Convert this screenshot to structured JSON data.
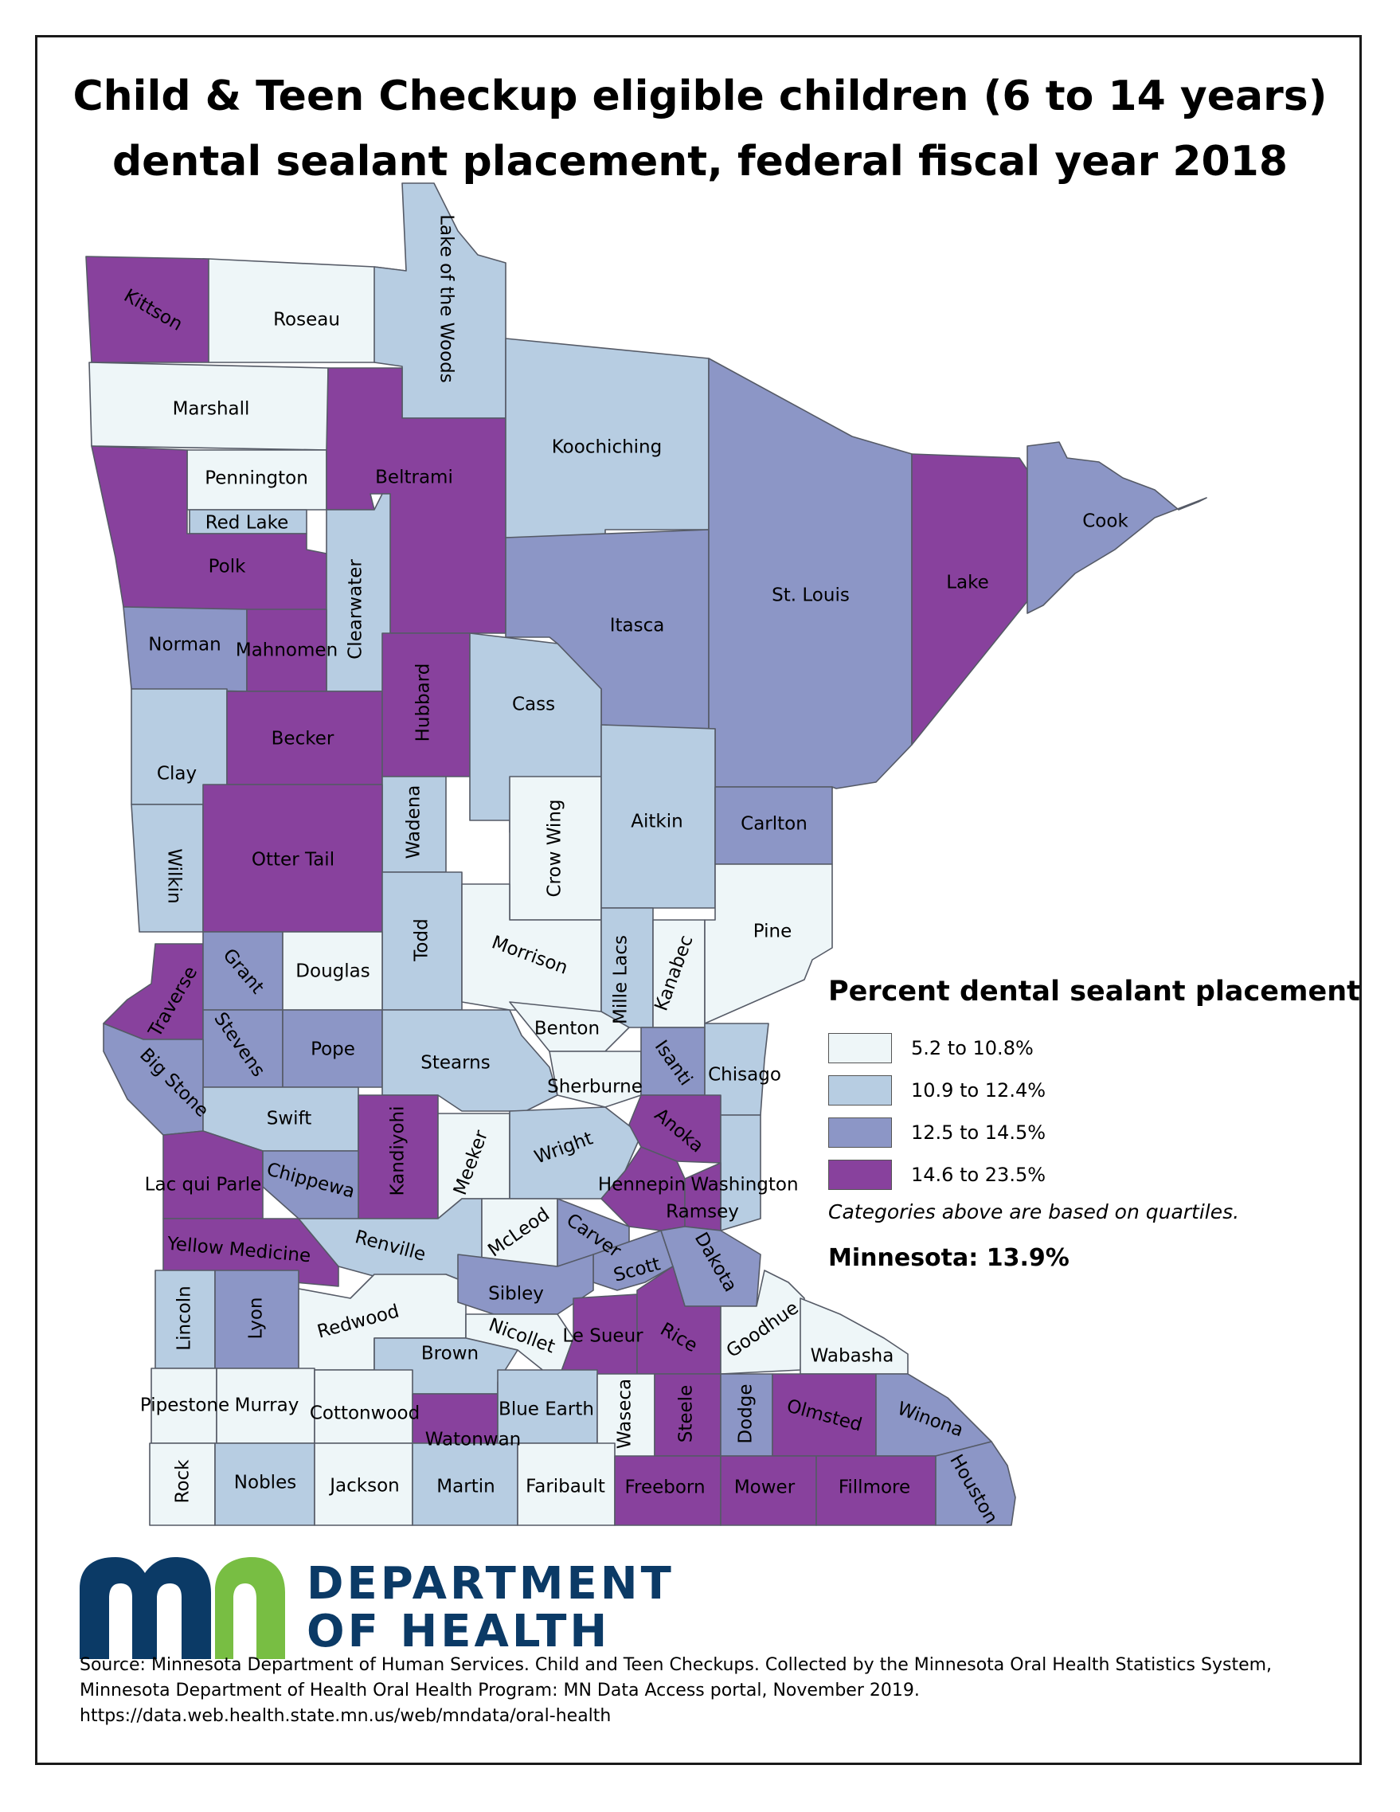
{
  "title_line1": "Child & Teen Checkup eligible children (6 to 14 years)",
  "title_line2": "dental sealant placement, federal fiscal year 2018",
  "legend": {
    "title": "Percent dental sealant placement",
    "items": [
      {
        "label": "5.2 to 10.8%",
        "color": "#eef6f8",
        "class": "c1"
      },
      {
        "label": "10.9 to 12.4%",
        "color": "#b7cde2",
        "class": "c2"
      },
      {
        "label": "12.5 to 14.5%",
        "color": "#8c96c6",
        "class": "c3"
      },
      {
        "label": "14.6 to 23.5%",
        "color": "#88419d",
        "class": "c4"
      }
    ],
    "note": "Categories above are based on quartiles.",
    "state_total": "Minnesota: 13.9%"
  },
  "counties": [
    {
      "name": "Kittson",
      "class": "c4"
    },
    {
      "name": "Roseau",
      "class": "c1"
    },
    {
      "name": "Lake of the Woods",
      "class": "c2"
    },
    {
      "name": "Marshall",
      "class": "c1"
    },
    {
      "name": "Pennington",
      "class": "c1"
    },
    {
      "name": "Red Lake",
      "class": "c2"
    },
    {
      "name": "Polk",
      "class": "c4"
    },
    {
      "name": "Beltrami",
      "class": "c4"
    },
    {
      "name": "Koochiching",
      "class": "c2"
    },
    {
      "name": "Clearwater",
      "class": "c2"
    },
    {
      "name": "Norman",
      "class": "c3"
    },
    {
      "name": "Mahnomen",
      "class": "c4"
    },
    {
      "name": "Itasca",
      "class": "c3"
    },
    {
      "name": "St. Louis",
      "class": "c3"
    },
    {
      "name": "Lake",
      "class": "c4"
    },
    {
      "name": "Cook",
      "class": "c3"
    },
    {
      "name": "Clay",
      "class": "c2"
    },
    {
      "name": "Becker",
      "class": "c4"
    },
    {
      "name": "Hubbard",
      "class": "c4"
    },
    {
      "name": "Cass",
      "class": "c2"
    },
    {
      "name": "Wadena",
      "class": "c2"
    },
    {
      "name": "Crow Wing",
      "class": "c1"
    },
    {
      "name": "Aitkin",
      "class": "c2"
    },
    {
      "name": "Carlton",
      "class": "c3"
    },
    {
      "name": "Wilkin",
      "class": "c2"
    },
    {
      "name": "Otter Tail",
      "class": "c4"
    },
    {
      "name": "Todd",
      "class": "c2"
    },
    {
      "name": "Morrison",
      "class": "c1"
    },
    {
      "name": "Mille Lacs",
      "class": "c2"
    },
    {
      "name": "Kanabec",
      "class": "c1"
    },
    {
      "name": "Pine",
      "class": "c1"
    },
    {
      "name": "Traverse",
      "class": "c4"
    },
    {
      "name": "Grant",
      "class": "c3"
    },
    {
      "name": "Douglas",
      "class": "c1"
    },
    {
      "name": "Stevens",
      "class": "c3"
    },
    {
      "name": "Pope",
      "class": "c3"
    },
    {
      "name": "Stearns",
      "class": "c2"
    },
    {
      "name": "Benton",
      "class": "c1"
    },
    {
      "name": "Sherburne",
      "class": "c1"
    },
    {
      "name": "Isanti",
      "class": "c3"
    },
    {
      "name": "Chisago",
      "class": "c2"
    },
    {
      "name": "Big Stone",
      "class": "c3"
    },
    {
      "name": "Swift",
      "class": "c2"
    },
    {
      "name": "Kandiyohi",
      "class": "c4"
    },
    {
      "name": "Meeker",
      "class": "c1"
    },
    {
      "name": "Wright",
      "class": "c2"
    },
    {
      "name": "Anoka",
      "class": "c4"
    },
    {
      "name": "Lac qui Parle",
      "class": "c4"
    },
    {
      "name": "Chippewa",
      "class": "c3"
    },
    {
      "name": "Hennepin",
      "class": "c4"
    },
    {
      "name": "Washington",
      "class": "c2"
    },
    {
      "name": "Ramsey",
      "class": "c4"
    },
    {
      "name": "Yellow Medicine",
      "class": "c4"
    },
    {
      "name": "Renville",
      "class": "c2"
    },
    {
      "name": "McLeod",
      "class": "c1"
    },
    {
      "name": "Carver",
      "class": "c3"
    },
    {
      "name": "Scott",
      "class": "c3"
    },
    {
      "name": "Dakota",
      "class": "c3"
    },
    {
      "name": "Lincoln",
      "class": "c2"
    },
    {
      "name": "Lyon",
      "class": "c3"
    },
    {
      "name": "Redwood",
      "class": "c1"
    },
    {
      "name": "Sibley",
      "class": "c3"
    },
    {
      "name": "Nicollet",
      "class": "c1"
    },
    {
      "name": "Le Sueur",
      "class": "c4"
    },
    {
      "name": "Rice",
      "class": "c4"
    },
    {
      "name": "Goodhue",
      "class": "c1"
    },
    {
      "name": "Wabasha",
      "class": "c1"
    },
    {
      "name": "Brown",
      "class": "c2"
    },
    {
      "name": "Pipestone",
      "class": "c1"
    },
    {
      "name": "Murray",
      "class": "c1"
    },
    {
      "name": "Cottonwood",
      "class": "c1"
    },
    {
      "name": "Watonwan",
      "class": "c4"
    },
    {
      "name": "Blue Earth",
      "class": "c2"
    },
    {
      "name": "Waseca",
      "class": "c1"
    },
    {
      "name": "Steele",
      "class": "c4"
    },
    {
      "name": "Dodge",
      "class": "c3"
    },
    {
      "name": "Olmsted",
      "class": "c4"
    },
    {
      "name": "Winona",
      "class": "c3"
    },
    {
      "name": "Rock",
      "class": "c1"
    },
    {
      "name": "Nobles",
      "class": "c2"
    },
    {
      "name": "Jackson",
      "class": "c1"
    },
    {
      "name": "Martin",
      "class": "c2"
    },
    {
      "name": "Faribault",
      "class": "c1"
    },
    {
      "name": "Freeborn",
      "class": "c4"
    },
    {
      "name": "Mower",
      "class": "c4"
    },
    {
      "name": "Fillmore",
      "class": "c4"
    },
    {
      "name": "Houston",
      "class": "c3"
    }
  ],
  "logo": {
    "line1": "DEPARTMENT",
    "line2": "OF HEALTH",
    "mark_color_blue": "#0b3a66",
    "mark_color_green": "#78be43"
  },
  "source_line1": "Source: Minnesota Department of Human Services. Child and Teen Checkups. Collected by the Minnesota Oral Health Statistics System,",
  "source_line2": "Minnesota Department of Health Oral Health Program: MN Data Access portal, November 2019.",
  "source_line3": "https://data.web.health.state.mn.us/web/mndata/oral-health"
}
